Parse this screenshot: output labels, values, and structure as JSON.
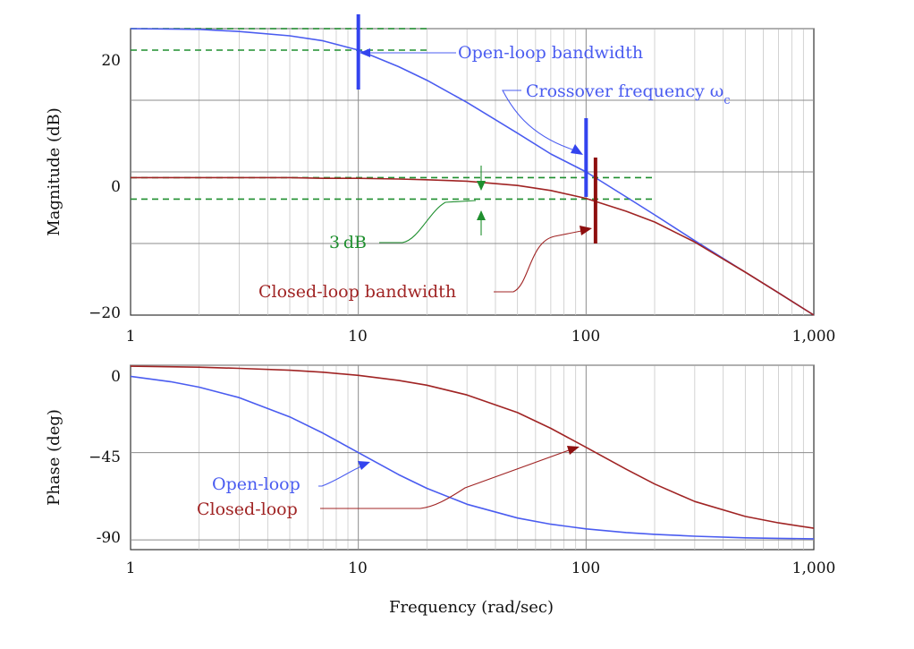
{
  "chart_data": [
    {
      "type": "line",
      "panel": "magnitude",
      "xscale": "log",
      "xlim": [
        1,
        1000
      ],
      "ylim": [
        -20,
        20
      ],
      "ylabel": "Magnitude (dB)",
      "xlabel": "",
      "x_ticks": [
        "1",
        "10",
        "100",
        "1,000"
      ],
      "y_ticks": [
        "20",
        "0",
        "−20"
      ],
      "grid": true,
      "series": [
        {
          "name": "Open-loop",
          "color": "#4a5cf0",
          "x": [
            1,
            2,
            3,
            5,
            7,
            10,
            15,
            20,
            30,
            50,
            70,
            100,
            150,
            200,
            300,
            500,
            700,
            1000
          ],
          "y": [
            20,
            19.9,
            19.6,
            19.0,
            18.3,
            17.0,
            14.7,
            12.8,
            9.7,
            5.4,
            2.5,
            0,
            -3.5,
            -6.0,
            -9.6,
            -14.0,
            -16.9,
            -20
          ]
        },
        {
          "name": "Closed-loop",
          "color": "#a02424",
          "x": [
            1,
            2,
            3,
            5,
            7,
            10,
            15,
            20,
            30,
            50,
            70,
            100,
            150,
            200,
            300,
            500,
            700,
            1000
          ],
          "y": [
            -0.8,
            -0.8,
            -0.8,
            -0.8,
            -0.9,
            -0.9,
            -1.0,
            -1.1,
            -1.3,
            -1.9,
            -2.6,
            -3.7,
            -5.5,
            -7.0,
            -9.8,
            -14.0,
            -16.9,
            -20
          ]
        }
      ],
      "reference_lines": [
        {
          "y": 20,
          "x_to": 20,
          "color": "#1f8f2f",
          "style": "dashed"
        },
        {
          "y": 17,
          "x_to": 20,
          "color": "#1f8f2f",
          "style": "dashed"
        },
        {
          "y": -0.8,
          "x_to": 200,
          "color": "#1f8f2f",
          "style": "dashed"
        },
        {
          "y": -3.8,
          "x_to": 200,
          "color": "#1f8f2f",
          "style": "dashed"
        }
      ],
      "markers": [
        {
          "x": 10,
          "y_from": 11.5,
          "y_to": 22.0,
          "color": "#3344ee"
        },
        {
          "x": 100,
          "y_from": -3.5,
          "y_to": 7.5,
          "color": "#3344ee"
        },
        {
          "x": 110,
          "y_from": -10.0,
          "y_to": 2.0,
          "color": "#8e0f0f"
        }
      ],
      "annotations": [
        {
          "id": "open_bw",
          "text": "Open-loop bandwidth",
          "color": "#4a5cf0"
        },
        {
          "id": "crossover",
          "text": "Crossover frequency ω",
          "sub": "c",
          "color": "#4a5cf0"
        },
        {
          "id": "three_db",
          "text": "3 dB",
          "color": "#1f8f2f"
        },
        {
          "id": "closed_bw",
          "text": "Closed-loop bandwidth",
          "color": "#a02424"
        }
      ]
    },
    {
      "type": "line",
      "panel": "phase",
      "xscale": "log",
      "xlim": [
        1,
        1000
      ],
      "ylim": [
        -95,
        0
      ],
      "ylabel": "Phase (deg)",
      "xlabel": "Frequency (rad/sec)",
      "x_ticks": [
        "1",
        "10",
        "100",
        "1,000"
      ],
      "y_ticks": [
        "0",
        "−45",
        "-90"
      ],
      "grid": true,
      "series": [
        {
          "name": "Open-loop",
          "color": "#4a5cf0",
          "x": [
            1,
            1.5,
            2,
            3,
            5,
            7,
            10,
            15,
            20,
            30,
            50,
            70,
            100,
            150,
            200,
            300,
            500,
            700,
            1000
          ],
          "y": [
            -5.7,
            -8.5,
            -11.3,
            -16.7,
            -26.6,
            -35.0,
            -45.0,
            -56.3,
            -63.4,
            -71.6,
            -78.7,
            -81.9,
            -84.3,
            -86.2,
            -87.1,
            -88.1,
            -88.9,
            -89.2,
            -89.4
          ]
        },
        {
          "name": "Closed-loop",
          "color": "#a02424",
          "x": [
            1,
            2,
            3,
            5,
            7,
            10,
            15,
            20,
            30,
            50,
            70,
            100,
            150,
            200,
            300,
            500,
            700,
            1000
          ],
          "y": [
            -0.5,
            -1.0,
            -1.6,
            -2.6,
            -3.6,
            -5.2,
            -7.8,
            -10.3,
            -15.3,
            -24.4,
            -32.5,
            -42.3,
            -53.6,
            -61.2,
            -70.2,
            -77.9,
            -81.2,
            -84.0
          ]
        }
      ],
      "annotations": [
        {
          "id": "open_loop",
          "text": "Open-loop",
          "color": "#4a5cf0"
        },
        {
          "id": "closed_loop",
          "text": "Closed-loop",
          "color": "#a02424"
        }
      ]
    }
  ]
}
